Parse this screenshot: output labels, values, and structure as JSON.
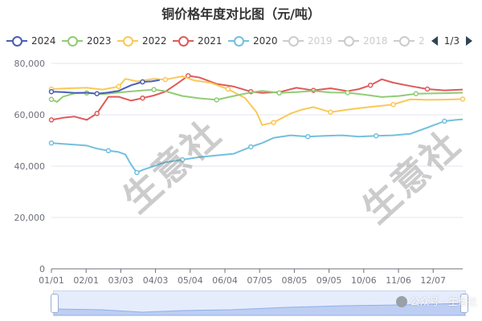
{
  "title": "铜价格年度对比图（元/吨）",
  "legend": {
    "items": [
      {
        "label": "2024",
        "color": "#4a5fb5",
        "active": true
      },
      {
        "label": "2023",
        "color": "#91cc75",
        "active": true
      },
      {
        "label": "2022",
        "color": "#fac858",
        "active": true
      },
      {
        "label": "2021",
        "color": "#e05a5a",
        "active": true
      },
      {
        "label": "2020",
        "color": "#73c0de",
        "active": true
      },
      {
        "label": "2019",
        "color": "#cccccc",
        "active": false
      },
      {
        "label": "2018",
        "color": "#cccccc",
        "active": false
      },
      {
        "label": "2",
        "color": "#cccccc",
        "active": false
      }
    ],
    "page": "1/3"
  },
  "watermark": "生意社",
  "footer_brand": "公众号 · 生意社",
  "chart_data": {
    "type": "line",
    "x_ticks": [
      "01/01",
      "02/01",
      "03/03",
      "04/03",
      "05/04",
      "06/04",
      "07/05",
      "08/05",
      "09/05",
      "10/06",
      "11/06",
      "12/07"
    ],
    "y_ticks": [
      "0",
      "20,000",
      "40,000",
      "60,000",
      "80,000"
    ],
    "ylim": [
      0,
      80000
    ],
    "xlim_days": [
      0,
      361
    ],
    "series": [
      {
        "name": "2024",
        "color": "#4a5fb5",
        "x": [
          0,
          10,
          20,
          31,
          40,
          50,
          59,
          70,
          80,
          88,
          95
        ],
        "y": [
          69000,
          68800,
          68500,
          68600,
          68200,
          68700,
          69300,
          71500,
          72800,
          73000,
          73500
        ]
      },
      {
        "name": "2023",
        "color": "#91cc75",
        "x": [
          0,
          5,
          10,
          20,
          31,
          45,
          59,
          75,
          90,
          100,
          115,
          130,
          145,
          160,
          175,
          185,
          200,
          215,
          230,
          245,
          260,
          275,
          290,
          305,
          320,
          335,
          345,
          361
        ],
        "y": [
          66000,
          65000,
          67000,
          68300,
          68500,
          68000,
          68700,
          69300,
          69800,
          69200,
          67300,
          66400,
          65800,
          67300,
          68700,
          69300,
          68500,
          68800,
          69300,
          68700,
          68600,
          67800,
          66900,
          67300,
          68200,
          68300,
          68400,
          68600
        ]
      },
      {
        "name": "2022",
        "color": "#fac858",
        "x": [
          0,
          15,
          31,
          45,
          59,
          65,
          75,
          90,
          100,
          115,
          125,
          140,
          155,
          170,
          180,
          185,
          195,
          210,
          220,
          230,
          245,
          260,
          275,
          290,
          300,
          315,
          330,
          345,
          361
        ],
        "y": [
          70000,
          70300,
          70500,
          69800,
          71000,
          74000,
          73000,
          74000,
          73700,
          75000,
          73400,
          72400,
          70000,
          66500,
          61000,
          56000,
          57000,
          60500,
          62000,
          63000,
          61000,
          62000,
          62800,
          63500,
          64000,
          66000,
          65800,
          65900,
          66100
        ]
      },
      {
        "name": "2021",
        "color": "#e05a5a",
        "x": [
          0,
          10,
          20,
          31,
          40,
          50,
          59,
          70,
          80,
          90,
          100,
          110,
          120,
          130,
          145,
          160,
          175,
          185,
          200,
          215,
          230,
          245,
          260,
          270,
          280,
          290,
          300,
          315,
          330,
          345,
          361
        ],
        "y": [
          58000,
          58800,
          59300,
          58000,
          60500,
          67000,
          67000,
          65500,
          66500,
          67500,
          69000,
          72000,
          75200,
          74500,
          72000,
          71000,
          69000,
          68500,
          68800,
          70500,
          69500,
          70300,
          69200,
          70000,
          71500,
          73800,
          72500,
          71200,
          70000,
          69500,
          69800
        ]
      },
      {
        "name": "2020",
        "color": "#73c0de",
        "x": [
          0,
          15,
          31,
          40,
          50,
          59,
          65,
          70,
          75,
          80,
          90,
          100,
          115,
          130,
          145,
          160,
          175,
          185,
          195,
          210,
          225,
          240,
          255,
          270,
          285,
          300,
          315,
          330,
          345,
          355,
          361
        ],
        "y": [
          49000,
          48500,
          48000,
          46800,
          46000,
          45500,
          44500,
          40500,
          37500,
          38500,
          40000,
          41500,
          42500,
          43500,
          44200,
          44800,
          47500,
          49000,
          51000,
          52000,
          51500,
          51800,
          52000,
          51500,
          51800,
          52000,
          52600,
          55000,
          57500,
          58000,
          58200
        ]
      }
    ]
  }
}
